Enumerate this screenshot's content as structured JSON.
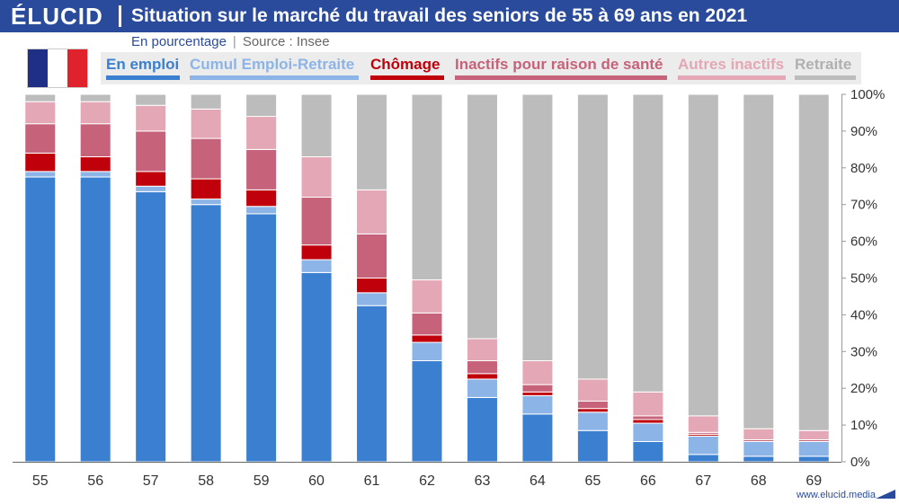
{
  "brand": "ÉLUCID",
  "title": "Situation sur le marché du travail des seniors de 55 à 69 ans en 2021",
  "subtitle": "En pourcentage",
  "source": "Source : Insee",
  "footer": "www.elucid.media",
  "colors": {
    "header": "#2a4b9b",
    "flag_blue": "#1f2f85",
    "flag_white": "#ffffff",
    "flag_red": "#e0222c"
  },
  "chart_data": {
    "type": "bar",
    "stacked": true,
    "categories": [
      "55",
      "56",
      "57",
      "58",
      "59",
      "60",
      "61",
      "62",
      "63",
      "64",
      "65",
      "66",
      "67",
      "68",
      "69"
    ],
    "ylim": [
      0,
      100
    ],
    "y_ticks": [
      "0%",
      "10%",
      "20%",
      "30%",
      "40%",
      "50%",
      "60%",
      "70%",
      "80%",
      "90%",
      "100%"
    ],
    "grid": false,
    "legend_position": "top",
    "series": [
      {
        "name": "En emploi",
        "color": "#3a7fd0",
        "label_color": "#3a7fd0",
        "values": [
          77.5,
          77.5,
          73.5,
          70,
          67.5,
          51.5,
          42.5,
          27.5,
          17.5,
          13,
          8.5,
          5.5,
          2,
          1.5,
          1.5
        ]
      },
      {
        "name": "Cumul Emploi-Retraite",
        "color": "#8db4e6",
        "label_color": "#8db4e6",
        "values": [
          1.5,
          1.5,
          1.5,
          1.5,
          2,
          3.5,
          3.5,
          5,
          5,
          5,
          5,
          5,
          5,
          4,
          4
        ]
      },
      {
        "name": "Chômage",
        "color": "#c0000a",
        "label_color": "#c0000a",
        "values": [
          5,
          4,
          4,
          5.5,
          4.5,
          4,
          4,
          2,
          1.5,
          1,
          1,
          1,
          0.5,
          0,
          0
        ]
      },
      {
        "name": "Inactifs pour raison de santé",
        "color": "#c66279",
        "label_color": "#c66279",
        "values": [
          8,
          9,
          11,
          11,
          11,
          13,
          12,
          6,
          3.5,
          2,
          2,
          1,
          0.5,
          0.5,
          0.5
        ]
      },
      {
        "name": "Autres inactifs",
        "color": "#e3a7b6",
        "label_color": "#e3a7b6",
        "values": [
          6,
          6,
          7,
          8,
          9,
          11,
          12,
          9,
          6,
          6.5,
          6,
          6.5,
          4.5,
          3,
          2.5
        ]
      },
      {
        "name": "Retraite",
        "color": "#bcbcbc",
        "label_color": "#b0b0b0",
        "values": [
          2,
          2,
          3,
          4,
          6,
          17,
          26,
          50.5,
          66.5,
          72.5,
          77.5,
          81,
          87.5,
          91,
          91.5
        ]
      }
    ]
  }
}
